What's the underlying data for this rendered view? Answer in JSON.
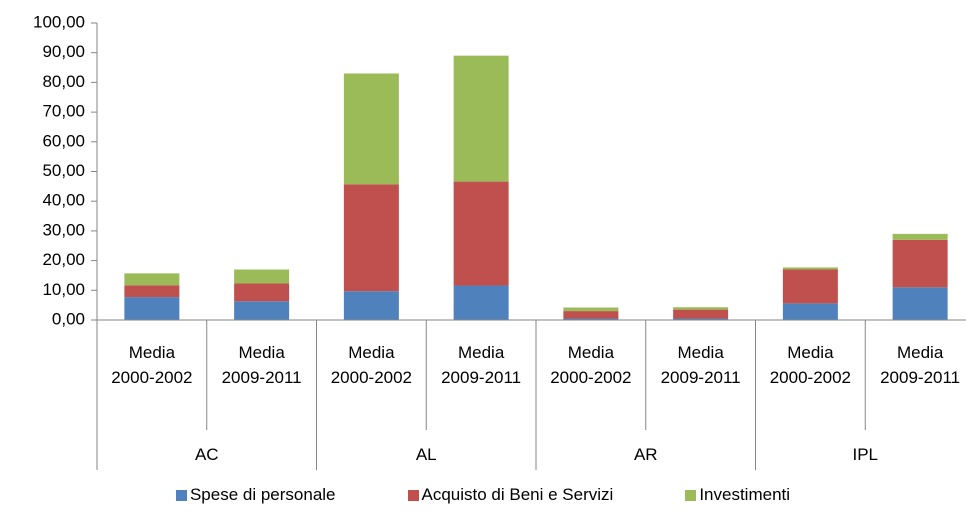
{
  "chart_data": {
    "type": "stacked-bar",
    "categories": [
      "Media 2000-2002",
      "Media 2009-2011",
      "Media 2000-2002",
      "Media 2009-2011",
      "Media 2000-2002",
      "Media 2009-2011",
      "Media 2000-2002",
      "Media 2009-2011"
    ],
    "groups": [
      "AC",
      "AL",
      "AR",
      "IPL"
    ],
    "series": [
      {
        "name": "Spese di personale",
        "color": "#4f81bd",
        "values": [
          7.7,
          6.3,
          9.7,
          11.6,
          0.5,
          0.5,
          5.6,
          11
        ]
      },
      {
        "name": "Acquisto di Beni e Servizi",
        "color": "#c0504d",
        "values": [
          4,
          6,
          36,
          35,
          2.5,
          3,
          11.4,
          16
        ]
      },
      {
        "name": "Investimenti",
        "color": "#9bbb59",
        "values": [
          4,
          4.7,
          37.3,
          42.4,
          1.2,
          0.8,
          0.7,
          2
        ]
      }
    ],
    "ylim": [
      0,
      100
    ],
    "yticks": [
      {
        "value": 0,
        "label": "0,00"
      },
      {
        "value": 10,
        "label": "10,00"
      },
      {
        "value": 20,
        "label": "20,00"
      },
      {
        "value": 30,
        "label": "30,00"
      },
      {
        "value": 40,
        "label": "40,00"
      },
      {
        "value": 50,
        "label": "50,00"
      },
      {
        "value": 60,
        "label": "60,00"
      },
      {
        "value": 70,
        "label": "70,00"
      },
      {
        "value": 80,
        "label": "80,00"
      },
      {
        "value": 90,
        "label": "90,00"
      },
      {
        "value": 100,
        "label": "100,00"
      }
    ],
    "legend": "bottom"
  }
}
